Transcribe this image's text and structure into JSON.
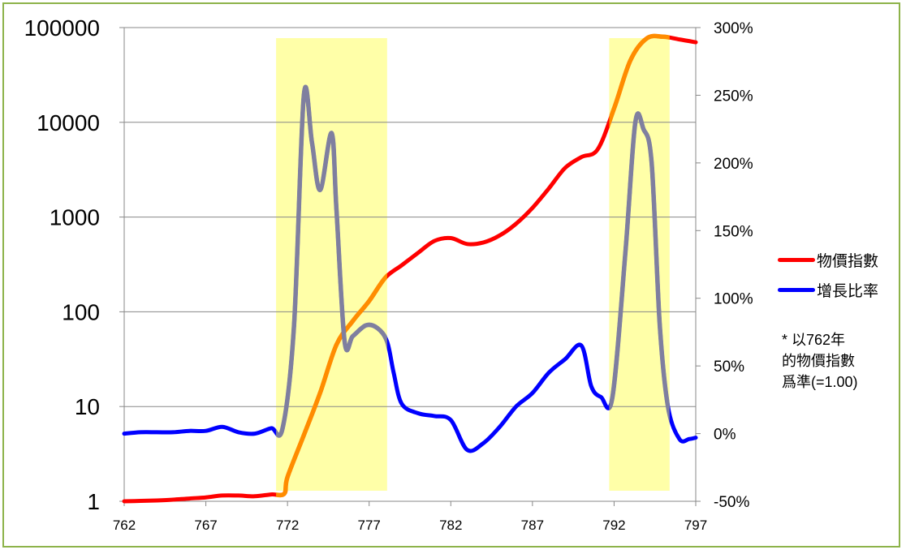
{
  "chart_data": {
    "type": "line",
    "x_ticks": [
      762,
      767,
      772,
      777,
      782,
      787,
      792,
      797
    ],
    "y_left_ticks": [
      "1",
      "10",
      "100",
      "1000",
      "10000",
      "100000"
    ],
    "y_left_scale": "log",
    "y_left_range": [
      1,
      100000
    ],
    "y_right_ticks": [
      "-50%",
      "0%",
      "50%",
      "100%",
      "150%",
      "200%",
      "250%",
      "300%"
    ],
    "y_right_range": [
      -50,
      300
    ],
    "x_range": [
      762,
      797
    ],
    "grid": true,
    "legend_position": "right",
    "highlight_bands": [
      {
        "from": 771.3,
        "to": 778.1
      },
      {
        "from": 791.7,
        "to": 795.4
      }
    ],
    "series": [
      {
        "name": "物價指數",
        "axis": "left",
        "color": "#ff0000",
        "band_color": "#ff8c00",
        "x": [
          762,
          763,
          764,
          765,
          766,
          767,
          768,
          769,
          770,
          771,
          771.8,
          772,
          773,
          774,
          775,
          776,
          777,
          778,
          779,
          780,
          781,
          782,
          783,
          784,
          785,
          786,
          787,
          788,
          789,
          790,
          791,
          792,
          793,
          794,
          795,
          796,
          797
        ],
        "values": [
          1.0,
          1.01,
          1.02,
          1.04,
          1.07,
          1.1,
          1.15,
          1.15,
          1.13,
          1.18,
          1.2,
          1.8,
          5,
          14,
          45,
          80,
          130,
          230,
          310,
          420,
          560,
          600,
          520,
          540,
          640,
          850,
          1250,
          2000,
          3300,
          4300,
          5200,
          14000,
          45000,
          77000,
          80000,
          75000,
          70000
        ]
      },
      {
        "name": "增長比率",
        "axis": "right",
        "color": "#0000ff",
        "band_color": "#7f7f9f",
        "x": [
          762,
          763,
          764,
          765,
          766,
          767,
          768,
          769,
          770,
          771,
          771.7,
          772.4,
          773,
          773.5,
          774,
          774.7,
          775,
          775.5,
          776,
          776.8,
          777.5,
          778.1,
          778.5,
          779,
          780,
          781,
          782,
          783,
          784,
          785,
          786,
          787,
          788,
          789,
          790,
          790.6,
          791.2,
          791.9,
          792.7,
          793.3,
          793.8,
          794.3,
          794.8,
          795.3,
          796,
          796.6,
          797
        ],
        "values": [
          0,
          1,
          1,
          1,
          2,
          2,
          5,
          1,
          0,
          4,
          4,
          80,
          250,
          215,
          180,
          222,
          165,
          68,
          72,
          80,
          78,
          68,
          45,
          22,
          15,
          13,
          10,
          -12,
          -7,
          5,
          20,
          30,
          45,
          55,
          65,
          35,
          27,
          27,
          135,
          230,
          225,
          200,
          80,
          20,
          -4,
          -4,
          -3
        ]
      }
    ],
    "note": [
      "*  以762年",
      "的物價指數",
      "爲準(=1.00)"
    ]
  }
}
